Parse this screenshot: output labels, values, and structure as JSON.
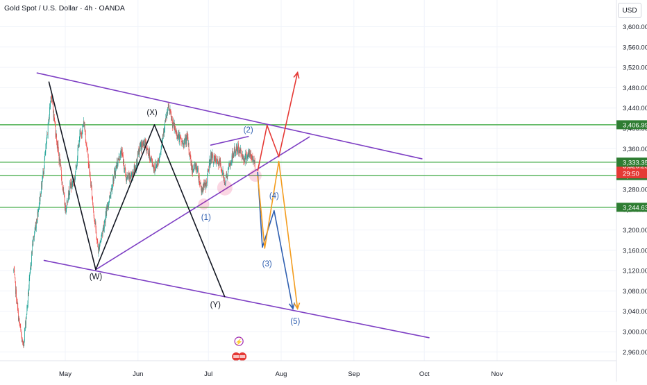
{
  "header": {
    "title": "Gold Spot / U.S. Dollar · 4h · OANDA",
    "currency": "USD",
    "countdown": "29:50"
  },
  "colors": {
    "candle_up": "#26a69a",
    "candle_down": "#ef5350",
    "channel": "#7e3fc4",
    "zigzag": "#131722",
    "wave_path": "#2f5fb0",
    "alt_path": "#f39c1e",
    "bull_path": "#e53935",
    "support_line": "#4caf50",
    "price_badge": "#e53935",
    "level_badge": "#2e7d32"
  },
  "chart_data": {
    "type": "candlestick",
    "symbol": "Gold Spot / U.S. Dollar",
    "timeframe": "4h",
    "source": "OANDA",
    "x_ticks": [
      "May",
      "Jun",
      "Jul",
      "Aug",
      "Sep",
      "Oct",
      "Nov"
    ],
    "y_ticks": [
      2960,
      3000,
      3040,
      3080,
      3120,
      3160,
      3200,
      3240,
      3280,
      3320,
      3360,
      3400,
      3440,
      3480,
      3520,
      3560,
      3600
    ],
    "ylim": [
      2940,
      3630
    ],
    "xlim": [
      "2025-04-09",
      "2025-11-28"
    ],
    "price_path": [
      [
        "2025-04-09",
        3120
      ],
      [
        "2025-04-11",
        3030
      ],
      [
        "2025-04-13",
        2968
      ],
      [
        "2025-04-15",
        3060
      ],
      [
        "2025-04-17",
        3170
      ],
      [
        "2025-04-19",
        3225
      ],
      [
        "2025-04-21",
        3290
      ],
      [
        "2025-04-23",
        3370
      ],
      [
        "2025-04-25",
        3470
      ],
      [
        "2025-04-27",
        3390
      ],
      [
        "2025-04-29",
        3320
      ],
      [
        "2025-05-01",
        3240
      ],
      [
        "2025-05-03",
        3285
      ],
      [
        "2025-05-05",
        3300
      ],
      [
        "2025-05-07",
        3380
      ],
      [
        "2025-05-09",
        3410
      ],
      [
        "2025-05-11",
        3330
      ],
      [
        "2025-05-13",
        3240
      ],
      [
        "2025-05-15",
        3160
      ],
      [
        "2025-05-17",
        3200
      ],
      [
        "2025-05-19",
        3245
      ],
      [
        "2025-05-21",
        3290
      ],
      [
        "2025-05-23",
        3330
      ],
      [
        "2025-05-25",
        3355
      ],
      [
        "2025-05-27",
        3300
      ],
      [
        "2025-05-29",
        3305
      ],
      [
        "2025-05-31",
        3325
      ],
      [
        "2025-06-02",
        3365
      ],
      [
        "2025-06-04",
        3370
      ],
      [
        "2025-06-06",
        3345
      ],
      [
        "2025-06-08",
        3320
      ],
      [
        "2025-06-10",
        3340
      ],
      [
        "2025-06-12",
        3400
      ],
      [
        "2025-06-14",
        3440
      ],
      [
        "2025-06-16",
        3405
      ],
      [
        "2025-06-18",
        3385
      ],
      [
        "2025-06-20",
        3370
      ],
      [
        "2025-06-22",
        3380
      ],
      [
        "2025-06-24",
        3320
      ],
      [
        "2025-06-26",
        3325
      ],
      [
        "2025-06-28",
        3280
      ],
      [
        "2025-06-30",
        3290
      ],
      [
        "2025-07-02",
        3345
      ],
      [
        "2025-07-04",
        3335
      ],
      [
        "2025-07-06",
        3330
      ],
      [
        "2025-07-08",
        3295
      ],
      [
        "2025-07-10",
        3325
      ],
      [
        "2025-07-12",
        3355
      ],
      [
        "2025-07-14",
        3360
      ],
      [
        "2025-07-16",
        3340
      ],
      [
        "2025-07-18",
        3350
      ],
      [
        "2025-07-20",
        3340
      ],
      [
        "2025-07-21",
        3326
      ]
    ],
    "levels": [
      {
        "value": 3406.99,
        "label": "3,406.990"
      },
      {
        "value": 3333.35,
        "label": "3,333.350"
      },
      {
        "value": 3307.066,
        "label": "3,307.066"
      },
      {
        "value": 3244.635,
        "label": "3,244.635"
      }
    ],
    "last_price": {
      "value": 3326.23,
      "label": "3,326.230"
    },
    "annotations": [
      {
        "label": "(W)",
        "x": "2025-05-14",
        "y": 3103
      },
      {
        "label": "(X)",
        "x": "2025-06-07",
        "y": 3426
      },
      {
        "label": "(Y)",
        "x": "2025-07-04",
        "y": 3048
      },
      {
        "label": "(1)",
        "x": "2025-06-30",
        "y": 3220
      },
      {
        "label": "(2)",
        "x": "2025-07-18",
        "y": 3392
      },
      {
        "label": "(3)",
        "x": "2025-07-26",
        "y": 3128
      },
      {
        "label": "(4)",
        "x": "2025-07-29",
        "y": 3262
      },
      {
        "label": "(5)",
        "x": "2025-08-07",
        "y": 3015
      }
    ]
  }
}
